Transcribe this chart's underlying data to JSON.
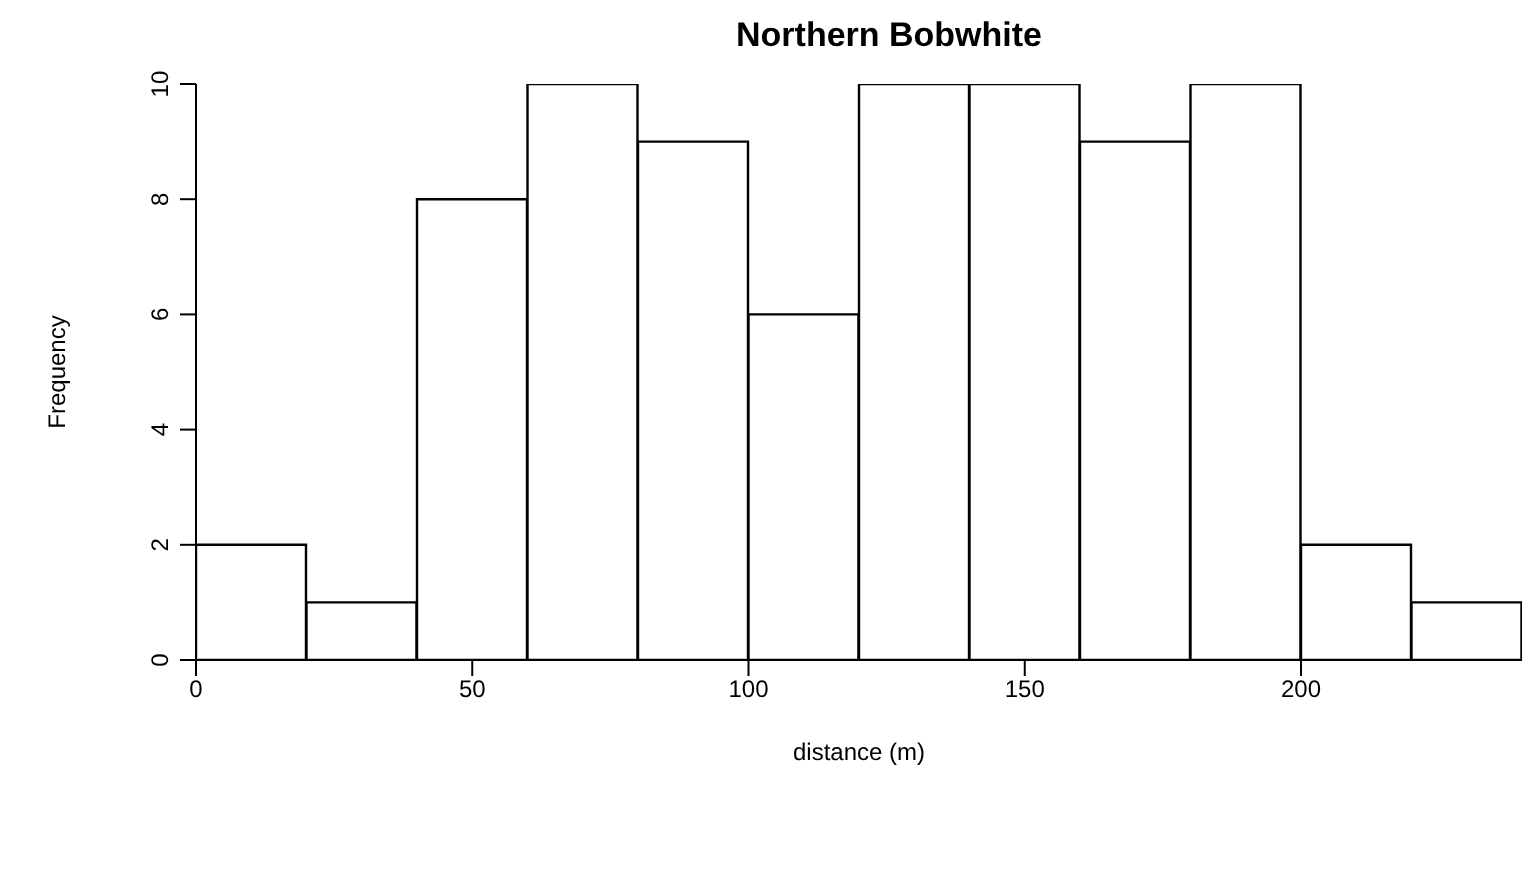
{
  "chart_data": {
    "type": "histogram",
    "title": "Northern Bobwhite",
    "xlabel": "distance (m)",
    "ylabel": "Frequency",
    "bins": [
      0,
      20,
      40,
      60,
      80,
      100,
      120,
      140,
      160,
      180,
      200,
      220,
      240
    ],
    "values": [
      2,
      1,
      8,
      10,
      9,
      6,
      10,
      10,
      9,
      10,
      2,
      1
    ],
    "color": "#ffffff",
    "xlim": [
      0,
      240
    ],
    "xticks": [
      0,
      50,
      100,
      150,
      200
    ],
    "ylim": [
      0,
      10
    ],
    "yticks": [
      0,
      2,
      4,
      6,
      8,
      10
    ],
    "grid": false,
    "legend": false
  }
}
